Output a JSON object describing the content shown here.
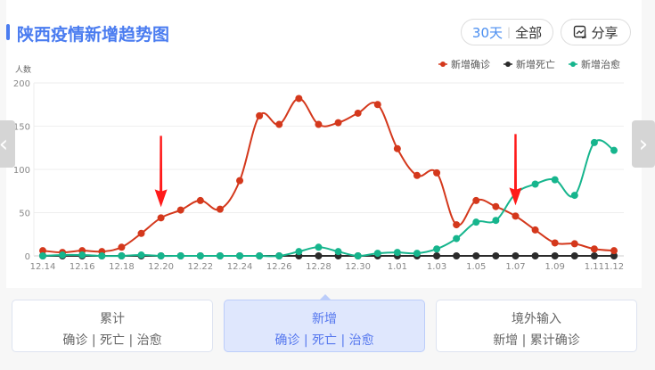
{
  "header": {
    "title": "陕西疫情新增趋势图",
    "range_30": "30天",
    "range_sep": "|",
    "range_all": "全部",
    "share_label": "分享"
  },
  "tabs": [
    {
      "title": "累计",
      "sub": "确诊 | 死亡 | 治愈"
    },
    {
      "title": "新增",
      "sub": "确诊 | 死亡 | 治愈"
    },
    {
      "title": "境外输入",
      "sub": "新增 | 累计确诊"
    }
  ],
  "colors": {
    "accent": "#4a7cf0",
    "confirmed": "#d4381c",
    "deaths": "#2b2b2b",
    "cured": "#16b58d",
    "arrow": "#ff1a1a"
  },
  "chart_data": {
    "type": "line",
    "ylabel": "人数",
    "ylim": [
      0,
      200
    ],
    "yticks": [
      0,
      50,
      100,
      150,
      200
    ],
    "grid": true,
    "legend": "top-right",
    "smooth": true,
    "x": [
      "12.14",
      "12.15",
      "12.16",
      "12.17",
      "12.18",
      "12.19",
      "12.20",
      "12.21",
      "12.22",
      "12.23",
      "12.24",
      "12.25",
      "12.26",
      "12.27",
      "12.28",
      "12.29",
      "12.30",
      "12.31",
      "1.01",
      "1.02",
      "1.03",
      "1.04",
      "1.05",
      "1.06",
      "1.07",
      "1.08",
      "1.09",
      "1.10",
      "1.11",
      "1.12"
    ],
    "xtick_labels": [
      "12.14",
      "12.16",
      "12.18",
      "12.20",
      "12.22",
      "12.24",
      "12.26",
      "12.28",
      "12.30",
      "1.01",
      "1.03",
      "1.05",
      "1.07",
      "1.09",
      "1.11",
      "1.12"
    ],
    "series": [
      {
        "name": "新增确诊",
        "color": "#d4381c",
        "values": [
          6,
          4,
          6,
          5,
          10,
          26,
          44,
          53,
          64,
          54,
          87,
          162,
          152,
          182,
          152,
          154,
          165,
          175,
          124,
          93,
          96,
          36,
          64,
          57,
          46,
          30,
          15,
          14,
          8,
          6
        ]
      },
      {
        "name": "新增死亡",
        "color": "#2b2b2b",
        "values": [
          0,
          0,
          0,
          0,
          0,
          0,
          0,
          0,
          0,
          0,
          0,
          0,
          0,
          0,
          0,
          0,
          0,
          0,
          0,
          0,
          0,
          0,
          0,
          0,
          0,
          0,
          0,
          0,
          0,
          0
        ]
      },
      {
        "name": "新增治愈",
        "color": "#16b58d",
        "values": [
          0,
          1,
          1,
          0,
          0,
          1,
          0,
          0,
          0,
          0,
          0,
          0,
          0,
          5,
          10,
          5,
          0,
          3,
          4,
          3,
          8,
          20,
          39,
          41,
          72,
          83,
          88,
          70,
          131,
          122
        ]
      }
    ],
    "annotations": [
      {
        "type": "arrow",
        "x": "12.20"
      },
      {
        "type": "arrow",
        "x": "1.07"
      }
    ]
  }
}
